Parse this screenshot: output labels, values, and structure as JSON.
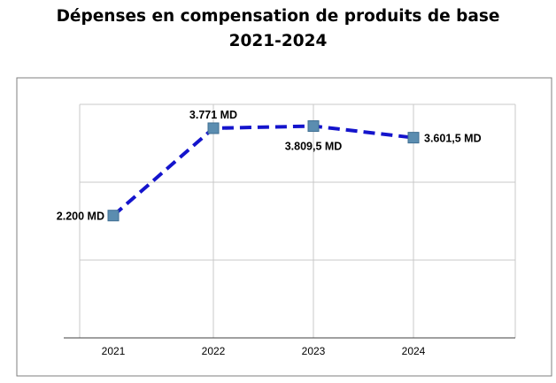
{
  "title_line1": "Dépenses en compensation de produits de base",
  "title_line2": "2021-2024",
  "colors": {
    "line": "#1414CC",
    "marker": "#5B8DB0",
    "marker_stroke": "#3F6E92",
    "grid": "#C8C8C8",
    "frame": "#7F7F7F",
    "axis": "#404040"
  },
  "chart_data": {
    "type": "line",
    "categories": [
      "2021",
      "2022",
      "2023",
      "2024"
    ],
    "series": [
      {
        "values": [
          2200,
          3771,
          3809.5,
          3601.5
        ],
        "labels": [
          "2.200 MD",
          "3.771 MD",
          "3.809,5 MD",
          "3.601,5 MD"
        ]
      }
    ],
    "ylim": [
      0,
      4200
    ],
    "grid": true,
    "line_style": "dashed",
    "marker": "square"
  }
}
